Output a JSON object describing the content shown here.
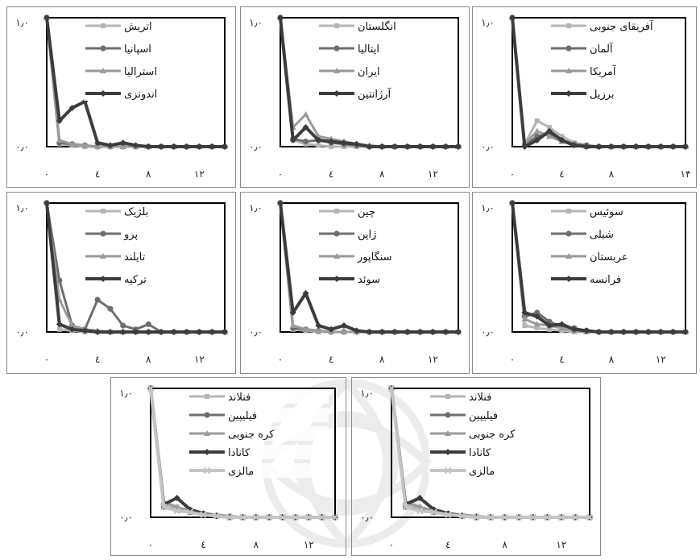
{
  "colors": {
    "s1": "#b5b5b5",
    "s2": "#6e6e6e",
    "s3": "#9a9a9a",
    "s4": "#3c3c3c",
    "s5": "#c4c4c4",
    "frame": "#000000",
    "panel_border": "#8a8a8a",
    "watermark": "#ececec"
  },
  "chart_data": [
    {
      "type": "line",
      "y_ticks": [
        "۱٫۰",
        "۰٫۰"
      ],
      "x_ticks": [
        "۰",
        "٤",
        "۸",
        "۱۲"
      ],
      "ylim": [
        0,
        1
      ],
      "xlim": [
        0,
        14
      ],
      "legend_placement": "top-right",
      "series": [
        {
          "name": "اتریش",
          "values": [
            1,
            0.02,
            0.01,
            0,
            0,
            0,
            0,
            0,
            0,
            0,
            0,
            0,
            0,
            0,
            0
          ]
        },
        {
          "name": "اسپانیا",
          "values": [
            1,
            0.03,
            0.02,
            0.01,
            0,
            0,
            0,
            0,
            0,
            0,
            0,
            0,
            0,
            0,
            0
          ]
        },
        {
          "name": "استرالیا",
          "values": [
            1,
            0.05,
            0.02,
            0.01,
            0,
            0,
            0,
            0,
            0,
            0,
            0,
            0,
            0,
            0,
            0
          ]
        },
        {
          "name": "اندونزی",
          "values": [
            1,
            0.2,
            0.3,
            0.35,
            0.03,
            0.01,
            0.03,
            0.01,
            0,
            0,
            0,
            0,
            0,
            0,
            0
          ]
        }
      ]
    },
    {
      "type": "line",
      "y_ticks": [
        "۱٫۰",
        "۰٫۰"
      ],
      "x_ticks": [
        "۰",
        "٤",
        "۸",
        "۱۲"
      ],
      "ylim": [
        0,
        1
      ],
      "xlim": [
        0,
        14
      ],
      "legend_placement": "top-right",
      "series": [
        {
          "name": "انگلستان",
          "values": [
            1,
            0.05,
            0.02,
            0.01,
            0,
            0,
            0,
            0,
            0,
            0,
            0,
            0,
            0,
            0,
            0
          ]
        },
        {
          "name": "ایتالیا",
          "values": [
            1,
            0.06,
            0.04,
            0.05,
            0.03,
            0.02,
            0.01,
            0,
            0,
            0,
            0,
            0,
            0,
            0,
            0
          ]
        },
        {
          "name": "ایران",
          "values": [
            1,
            0.15,
            0.25,
            0.08,
            0.06,
            0.04,
            0.02,
            0.01,
            0,
            0,
            0,
            0,
            0,
            0,
            0
          ]
        },
        {
          "name": "آرژانتین",
          "values": [
            1,
            0.05,
            0.15,
            0.05,
            0.04,
            0.03,
            0.02,
            0,
            0,
            0,
            0,
            0,
            0,
            0,
            0
          ]
        }
      ]
    },
    {
      "type": "line",
      "y_ticks": [
        "۱٫۰",
        "۰٫۰"
      ],
      "x_ticks": [
        "۰",
        "٤",
        "۸",
        "۱۴"
      ],
      "ylim": [
        0,
        1
      ],
      "xlim": [
        0,
        14
      ],
      "legend_placement": "top-right",
      "series": [
        {
          "name": "آفریقای جنوبی",
          "values": [
            1,
            0.02,
            0.2,
            0.15,
            0.08,
            0.03,
            0.01,
            0,
            0,
            0,
            0,
            0,
            0,
            0,
            0
          ]
        },
        {
          "name": "آلمان",
          "values": [
            1,
            0.01,
            0.08,
            0.1,
            0.05,
            0.02,
            0.01,
            0,
            0,
            0,
            0,
            0,
            0,
            0,
            0
          ]
        },
        {
          "name": "آمریکا",
          "values": [
            1,
            0.02,
            0.12,
            0.08,
            0.04,
            0.02,
            0,
            0,
            0,
            0,
            0,
            0,
            0,
            0,
            0
          ]
        },
        {
          "name": "برزیل",
          "values": [
            1,
            0,
            0.05,
            0.12,
            0.05,
            0.01,
            0,
            0,
            0,
            0,
            0,
            0,
            0,
            0,
            0
          ]
        }
      ]
    },
    {
      "type": "line",
      "y_ticks": [
        "۱٫۰",
        "۰٫۰"
      ],
      "x_ticks": [
        "۰",
        "٤",
        "۸",
        "۱۲"
      ],
      "ylim": [
        0,
        1
      ],
      "xlim": [
        0,
        14
      ],
      "legend_placement": "top-right",
      "series": [
        {
          "name": "بلژیک",
          "values": [
            1,
            0.02,
            0.01,
            0,
            0,
            0,
            0,
            0,
            0,
            0,
            0,
            0,
            0,
            0,
            0
          ]
        },
        {
          "name": "پرو",
          "values": [
            1,
            0.4,
            0.05,
            0.02,
            0.25,
            0.18,
            0.05,
            0.02,
            0.06,
            0,
            0,
            0,
            0,
            0,
            0
          ]
        },
        {
          "name": "تایلند",
          "values": [
            1,
            0.25,
            0.05,
            0.02,
            0.01,
            0,
            0,
            0,
            0,
            0,
            0,
            0,
            0,
            0,
            0
          ]
        },
        {
          "name": "ترکیه",
          "values": [
            1,
            0.06,
            0.02,
            0.01,
            0,
            0,
            0,
            0,
            0,
            0,
            0,
            0,
            0,
            0,
            0
          ]
        }
      ]
    },
    {
      "type": "line",
      "y_ticks": [
        "۱٫۰",
        "۰٫۰"
      ],
      "x_ticks": [
        "۰",
        "٤",
        "۸",
        "۱۲"
      ],
      "ylim": [
        0,
        1
      ],
      "xlim": [
        0,
        14
      ],
      "legend_placement": "top-right",
      "series": [
        {
          "name": "چین",
          "values": [
            1,
            0.02,
            0.01,
            0,
            0,
            0,
            0,
            0,
            0,
            0,
            0,
            0,
            0,
            0,
            0
          ]
        },
        {
          "name": "ژاپن",
          "values": [
            1,
            0.03,
            0.02,
            0.01,
            0,
            0,
            0,
            0,
            0,
            0,
            0,
            0,
            0,
            0,
            0
          ]
        },
        {
          "name": "سنگاپور",
          "values": [
            1,
            0.05,
            0.02,
            0.01,
            0,
            0,
            0,
            0,
            0,
            0,
            0,
            0,
            0,
            0,
            0
          ]
        },
        {
          "name": "سوئد",
          "values": [
            1,
            0.15,
            0.3,
            0.05,
            0.02,
            0.05,
            0.01,
            0,
            0,
            0,
            0,
            0,
            0,
            0,
            0
          ]
        }
      ]
    },
    {
      "type": "line",
      "y_ticks": [
        "۱٫۰",
        "۰٫۰"
      ],
      "x_ticks": [
        "۰",
        "٤",
        "۸",
        "۱۲"
      ],
      "ylim": [
        0,
        1
      ],
      "xlim": [
        0,
        14
      ],
      "legend_placement": "top-right",
      "series": [
        {
          "name": "سوئیس",
          "values": [
            1,
            0.05,
            0.03,
            0.02,
            0.01,
            0,
            0,
            0,
            0,
            0,
            0,
            0,
            0,
            0,
            0
          ]
        },
        {
          "name": "شیلی",
          "values": [
            1,
            0.12,
            0.15,
            0.08,
            0.04,
            0.03,
            0.01,
            0,
            0,
            0,
            0,
            0,
            0,
            0,
            0
          ]
        },
        {
          "name": "عربستان",
          "values": [
            1,
            0.1,
            0.06,
            0.05,
            0.03,
            0.01,
            0,
            0,
            0,
            0,
            0,
            0,
            0,
            0,
            0
          ]
        },
        {
          "name": "فرانسه",
          "values": [
            1,
            0.15,
            0.12,
            0.05,
            0.06,
            0.02,
            0.01,
            0,
            0,
            0,
            0,
            0,
            0,
            0,
            0
          ]
        }
      ]
    },
    {
      "type": "line",
      "y_ticks": [
        "۱٫۰",
        "۰٫۰"
      ],
      "x_ticks": [
        "۰",
        "٤",
        "۸",
        "۱۲"
      ],
      "ylim": [
        0,
        1
      ],
      "xlim": [
        0,
        14
      ],
      "legend_placement": "top-right",
      "series": [
        {
          "name": "فنلاند",
          "values": [
            1,
            0.1,
            0.08,
            0.05,
            0.03,
            0.01,
            0.01,
            0,
            0,
            0,
            0,
            0,
            0,
            0,
            0
          ]
        },
        {
          "name": "فیلیپین",
          "values": [
            1,
            0.08,
            0.06,
            0.04,
            0.02,
            0.01,
            0,
            0,
            0,
            0,
            0,
            0,
            0,
            0,
            0
          ]
        },
        {
          "name": "کره جنوبی",
          "values": [
            1,
            0.12,
            0.08,
            0.05,
            0.03,
            0.02,
            0.01,
            0,
            0,
            0,
            0,
            0,
            0,
            0,
            0
          ]
        },
        {
          "name": "کانادا",
          "values": [
            1,
            0.1,
            0.15,
            0.06,
            0.03,
            0.01,
            0,
            0,
            0,
            0,
            0,
            0,
            0,
            0,
            0
          ]
        },
        {
          "name": "مالزی",
          "values": [
            1,
            0.08,
            0.05,
            0.04,
            0.02,
            0.01,
            0,
            0,
            0,
            0,
            0,
            0,
            0,
            0,
            0
          ]
        }
      ]
    },
    {
      "type": "line",
      "y_ticks": [
        "۱٫۰",
        "۰٫۰"
      ],
      "x_ticks": [
        "۰",
        "٤",
        "۸",
        "۱۲"
      ],
      "ylim": [
        0,
        1
      ],
      "xlim": [
        0,
        14
      ],
      "legend_placement": "top-right",
      "series": [
        {
          "name": "فنلاند",
          "values": [
            1,
            0.1,
            0.08,
            0.05,
            0.03,
            0.01,
            0.01,
            0,
            0,
            0,
            0,
            0,
            0,
            0,
            0
          ]
        },
        {
          "name": "فیلیپین",
          "values": [
            1,
            0.08,
            0.06,
            0.04,
            0.02,
            0.01,
            0,
            0,
            0,
            0,
            0,
            0,
            0,
            0,
            0
          ]
        },
        {
          "name": "کره جنوبی",
          "values": [
            1,
            0.12,
            0.08,
            0.05,
            0.03,
            0.02,
            0.01,
            0,
            0,
            0,
            0,
            0,
            0,
            0,
            0
          ]
        },
        {
          "name": "کانادا",
          "values": [
            1,
            0.1,
            0.15,
            0.06,
            0.03,
            0.01,
            0,
            0,
            0,
            0,
            0,
            0,
            0,
            0,
            0
          ]
        },
        {
          "name": "مالزی",
          "values": [
            1,
            0.08,
            0.05,
            0.04,
            0.02,
            0.01,
            0,
            0,
            0,
            0,
            0,
            0,
            0,
            0,
            0
          ]
        }
      ]
    }
  ]
}
